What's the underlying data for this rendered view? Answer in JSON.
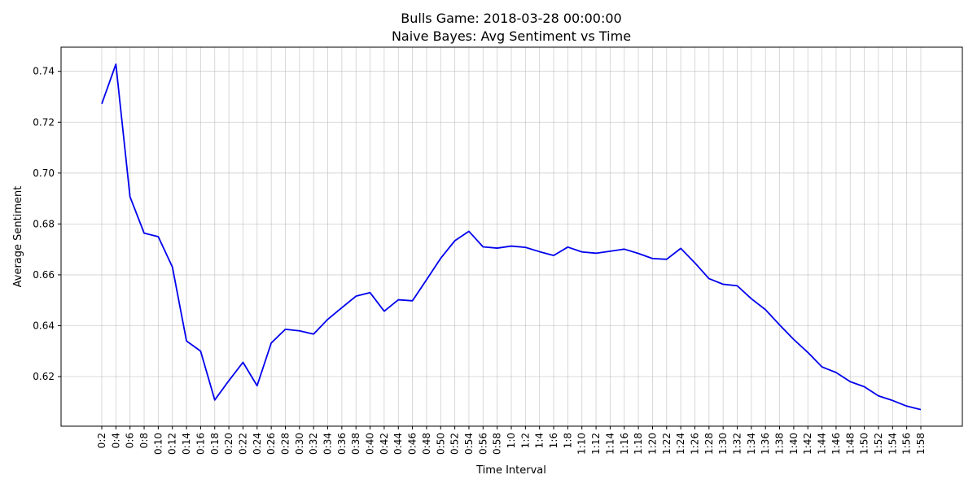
{
  "chart_data": {
    "type": "line",
    "title": "Bulls Game: 2018-03-28 00:00:00",
    "subtitle": "Naive Bayes: Avg Sentiment vs Time",
    "xlabel": "Time Interval",
    "ylabel": "Average Sentiment",
    "ylim": [
      0.6005,
      0.7495
    ],
    "yticks": [
      0.62,
      0.64,
      0.66,
      0.68,
      0.7,
      0.72,
      0.74
    ],
    "grid": true,
    "categories": [
      "0:2",
      "0:4",
      "0:6",
      "0:8",
      "0:10",
      "0:12",
      "0:14",
      "0:16",
      "0:18",
      "0:20",
      "0:22",
      "0:24",
      "0:26",
      "0:28",
      "0:30",
      "0:32",
      "0:34",
      "0:36",
      "0:38",
      "0:40",
      "0:42",
      "0:44",
      "0:46",
      "0:48",
      "0:50",
      "0:52",
      "0:54",
      "0:56",
      "0:58",
      "1:0",
      "1:2",
      "1:4",
      "1:6",
      "1:8",
      "1:10",
      "1:12",
      "1:14",
      "1:16",
      "1:18",
      "1:20",
      "1:22",
      "1:24",
      "1:26",
      "1:28",
      "1:30",
      "1:32",
      "1:34",
      "1:36",
      "1:38",
      "1:40",
      "1:42",
      "1:44",
      "1:46",
      "1:48",
      "1:50",
      "1:52",
      "1:54",
      "1:56",
      "1:58"
    ],
    "series": [
      {
        "color": "#0000ee",
        "values": [
          0.7272,
          0.7428,
          0.6907,
          0.6764,
          0.675,
          0.6631,
          0.634,
          0.63,
          0.6108,
          0.6184,
          0.6256,
          0.6164,
          0.6332,
          0.6386,
          0.638,
          0.6367,
          0.6425,
          0.6471,
          0.6516,
          0.653,
          0.6457,
          0.6502,
          0.6498,
          0.6581,
          0.6665,
          0.6734,
          0.6771,
          0.671,
          0.6705,
          0.6713,
          0.6708,
          0.6691,
          0.6676,
          0.6709,
          0.669,
          0.6685,
          0.6693,
          0.6701,
          0.6684,
          0.6664,
          0.6661,
          0.6704,
          0.6647,
          0.6585,
          0.6563,
          0.6557,
          0.6506,
          0.6463,
          0.6403,
          0.6346,
          0.6295,
          0.6238,
          0.6216,
          0.618,
          0.616,
          0.6124,
          0.6106,
          0.6084,
          0.607
        ]
      }
    ]
  }
}
